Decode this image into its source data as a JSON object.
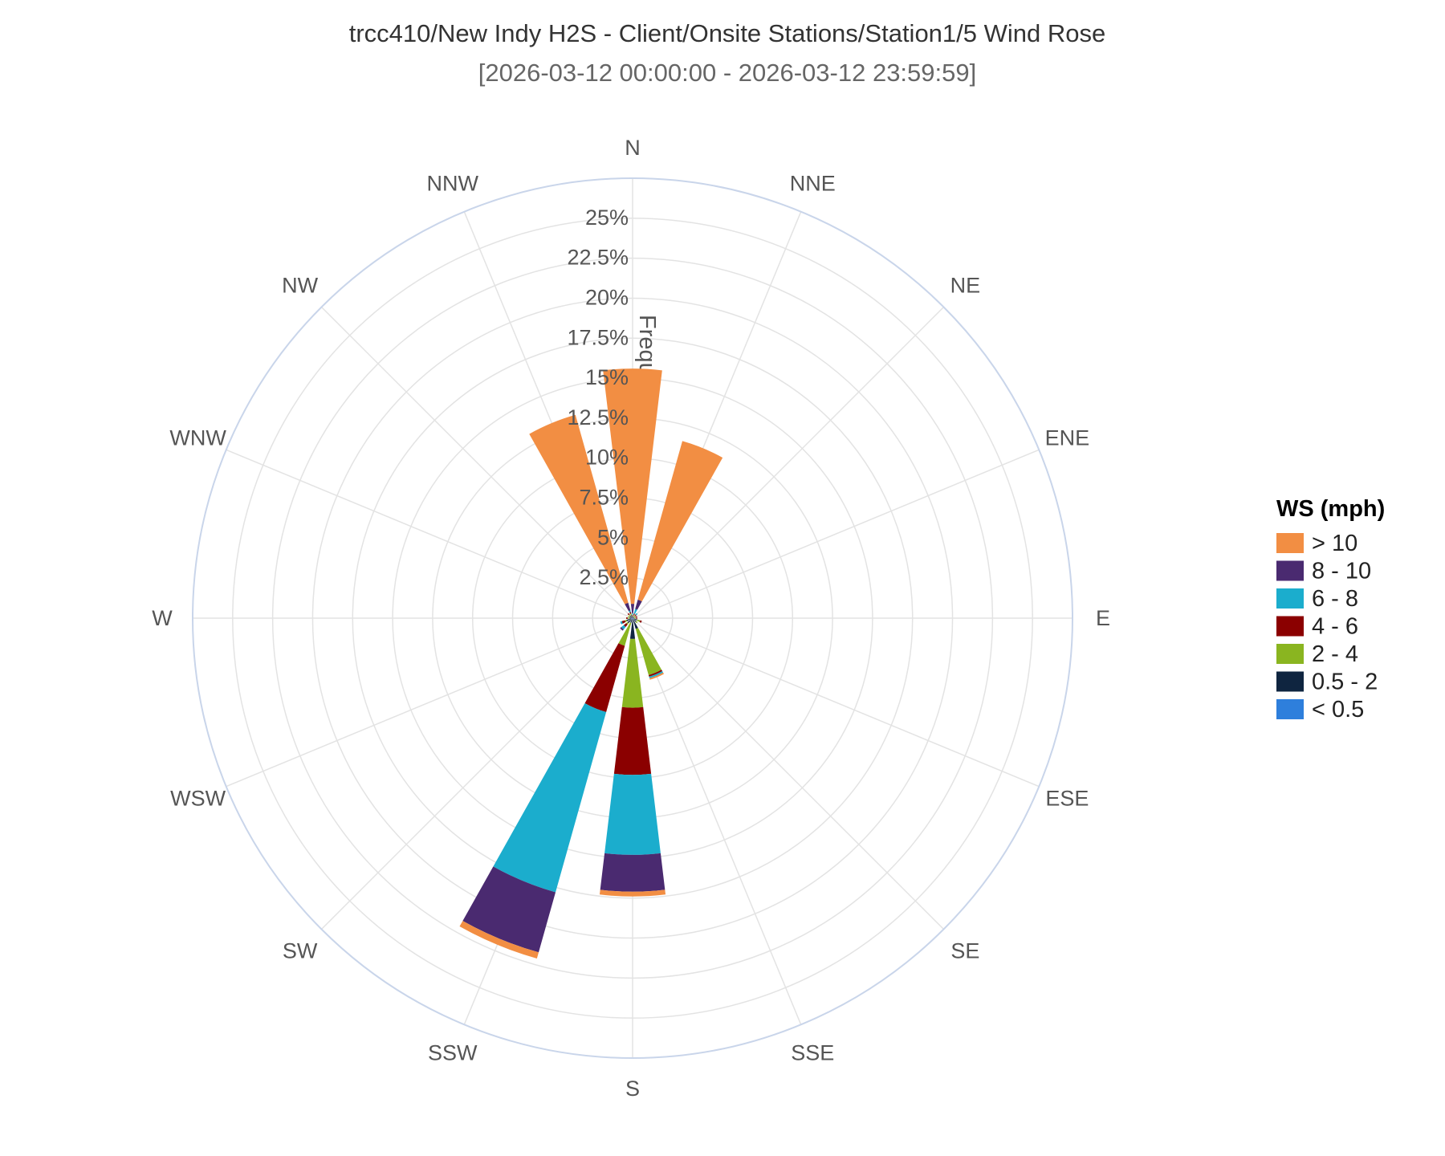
{
  "chart_data": {
    "type": "windrose",
    "title": "trcc410/New Indy H2S - Client/Onsite Stations/Station1/5 Wind Rose",
    "subtitle": "[2026-03-12 00:00:00 - 2026-03-12 23:59:59]",
    "radial_axis_title": "Frequency",
    "radial_ticks": [
      "2.5%",
      "5%",
      "7.5%",
      "10%",
      "12.5%",
      "15%",
      "17.5%",
      "20%",
      "22.5%",
      "25%"
    ],
    "rmax": 27.5,
    "directions": [
      "N",
      "NNE",
      "NE",
      "ENE",
      "E",
      "ESE",
      "SE",
      "SSE",
      "S",
      "SSW",
      "SW",
      "WSW",
      "W",
      "WNW",
      "NW",
      "NNW"
    ],
    "legend": {
      "title": "WS (mph)",
      "placement": "right"
    },
    "series": [
      {
        "name": "< 0.5",
        "color": "#2e7fdc",
        "values": [
          0,
          0,
          0,
          0,
          0,
          0.1,
          0,
          0.1,
          0,
          0,
          0.1,
          0.1,
          0,
          0,
          0,
          0
        ]
      },
      {
        "name": "0.5 - 2",
        "color": "#0f2540",
        "values": [
          0.1,
          0.1,
          0.1,
          0.1,
          0.1,
          0.2,
          0.3,
          0.6,
          1.3,
          0.3,
          0.3,
          0.3,
          0.2,
          0.2,
          0.2,
          0.2
        ]
      },
      {
        "name": "2 - 4",
        "color": "#8ab520",
        "values": [
          0,
          0.1,
          0.1,
          0.1,
          0.1,
          0.2,
          0.1,
          3.0,
          4.3,
          1.5,
          0.1,
          0.1,
          0.1,
          0.1,
          0.1,
          0.1
        ]
      },
      {
        "name": "4 - 6",
        "color": "#8b0000",
        "values": [
          0.1,
          0.1,
          0.1,
          0.1,
          0.1,
          0.1,
          0,
          0.1,
          4.2,
          4.3,
          0.2,
          0.2,
          0.1,
          0,
          0.1,
          0.1
        ]
      },
      {
        "name": "6 - 8",
        "color": "#1badcd",
        "values": [
          0.1,
          0.3,
          0.1,
          0,
          0,
          0,
          0,
          0.1,
          5.0,
          11.7,
          0.2,
          0.1,
          0,
          0,
          0,
          0.1
        ]
      },
      {
        "name": "8 - 10",
        "color": "#4a2a70",
        "values": [
          0.6,
          0.6,
          0,
          0,
          0,
          0,
          0,
          0,
          2.3,
          3.9,
          0.1,
          0,
          0,
          0,
          0,
          0.5
        ]
      },
      {
        "name": "> 10",
        "color": "#f28e43",
        "values": [
          14.7,
          10.3,
          0,
          0,
          0,
          0,
          0,
          0.1,
          0.3,
          0.4,
          0,
          0,
          0,
          0,
          0,
          12.2
        ]
      }
    ]
  }
}
